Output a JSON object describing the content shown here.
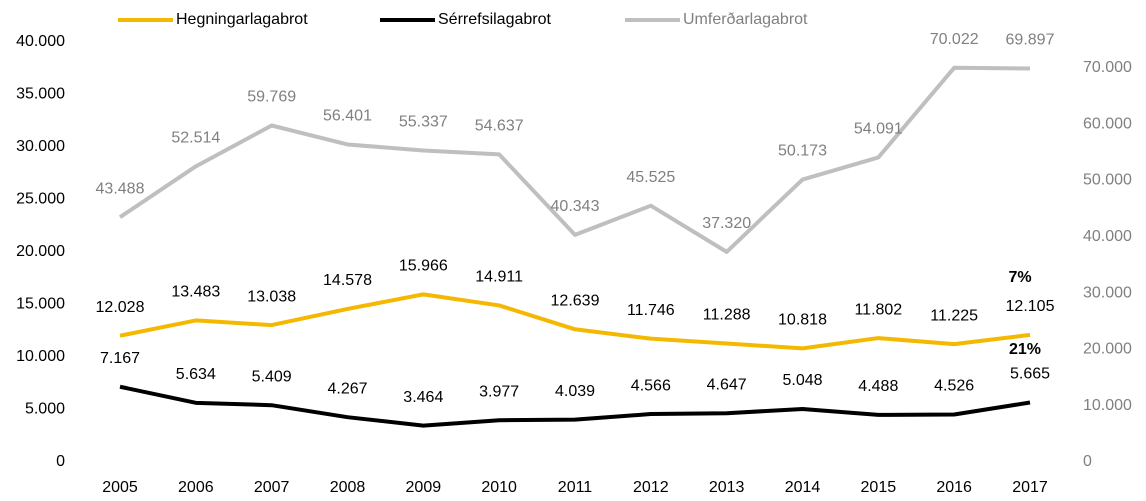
{
  "chart_data": {
    "type": "line",
    "categories": [
      "2005",
      "2006",
      "2007",
      "2008",
      "2009",
      "2010",
      "2011",
      "2012",
      "2013",
      "2014",
      "2015",
      "2016",
      "2017"
    ],
    "series": [
      {
        "name": "Hegningarlagabrot",
        "color": "#f5b800",
        "values": [
          12028,
          13483,
          13038,
          14578,
          15966,
          14911,
          12639,
          11746,
          11288,
          10818,
          11802,
          11225,
          12105
        ],
        "value_labels": [
          "12.028",
          "13.483",
          "13.038",
          "14.578",
          "15.966",
          "14.911",
          "12.639",
          "11.746",
          "11.288",
          "10.818",
          "11.802",
          "11.225",
          "12.105"
        ]
      },
      {
        "name": "Sérrefsilagabrot",
        "color": "#000000",
        "values": [
          7167,
          5634,
          5409,
          4267,
          3464,
          3977,
          4039,
          4566,
          4647,
          5048,
          4488,
          4526,
          5665
        ],
        "value_labels": [
          "7.167",
          "5.634",
          "5.409",
          "4.267",
          "3.464",
          "3.977",
          "4.039",
          "4.566",
          "4.647",
          "5.048",
          "4.488",
          "4.526",
          "5.665"
        ]
      },
      {
        "name": "Umferðarlagabrot",
        "color": "#bfbfbf",
        "axis": "y2",
        "values": [
          43488,
          52514,
          59769,
          56401,
          55337,
          54637,
          40343,
          45525,
          37320,
          50173,
          54091,
          70022,
          69897
        ],
        "value_labels": [
          "43.488",
          "52.514",
          "59.769",
          "56.401",
          "55.337",
          "54.637",
          "40.343",
          "45.525",
          "37.320",
          "50.173",
          "54.091",
          "70.022",
          "69.897"
        ]
      }
    ],
    "ylim": [
      0,
      40000
    ],
    "yticks": [
      0,
      {
        "value": 5000,
        "label": "5.000"
      },
      {
        "value": 10000,
        "label": "10.000"
      },
      {
        "value": 15000,
        "label": "15.000"
      },
      {
        "value": 20000,
        "label": "20.000"
      },
      {
        "value": 25000,
        "label": "25.000"
      },
      {
        "value": 30000,
        "label": "30.000"
      },
      {
        "value": 35000,
        "label": "35.000"
      },
      {
        "value": 40000,
        "label": "40.000"
      }
    ],
    "y2lim": [
      0,
      74600
    ],
    "y2ticks": [
      0,
      {
        "value": 10000,
        "label": "10.000"
      },
      {
        "value": 20000,
        "label": "20.000"
      },
      {
        "value": 30000,
        "label": "30.000"
      },
      {
        "value": 40000,
        "label": "40.000"
      },
      {
        "value": 50000,
        "label": "50.000"
      },
      {
        "value": 60000,
        "label": "60.000"
      },
      {
        "value": 70000,
        "label": "70.000"
      }
    ],
    "annotations": [
      "7%",
      "21%"
    ],
    "legend": "top"
  }
}
